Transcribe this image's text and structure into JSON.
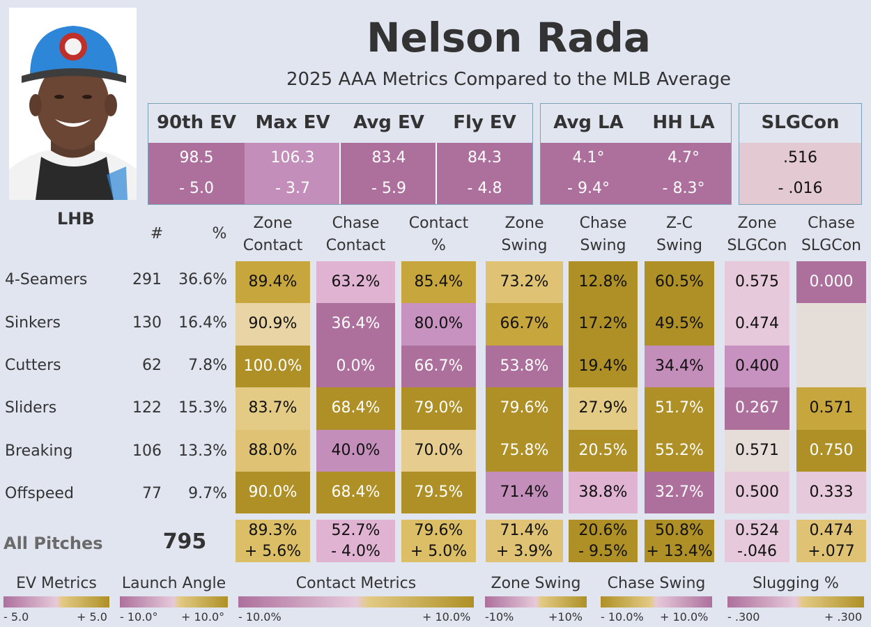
{
  "player": {
    "name": "Nelson Rada",
    "subtitle": "2025 AAA Metrics Compared to the MLB Average",
    "hand": "LHB"
  },
  "colors": {
    "background": "#e1e5f0",
    "dark_purple": "#ad709d",
    "mid_purple": "#c48ebb",
    "light_pink": "#e0b3d2",
    "neutral": "#e6ddd8",
    "light_gold": "#e3ca85",
    "mid_gold": "#c8a63e",
    "dark_gold": "#ae9026"
  },
  "ev_group": {
    "headers": [
      "90th EV",
      "Max EV",
      "Avg EV",
      "Fly EV"
    ],
    "values": [
      "98.5",
      "106.3",
      "83.4",
      "84.3"
    ],
    "diffs": [
      "- 5.0",
      "- 3.7",
      "- 5.9",
      "- 4.8"
    ]
  },
  "la_group": {
    "headers": [
      "Avg LA",
      "HH LA"
    ],
    "values": [
      "4.1°",
      "4.7°"
    ],
    "diffs": [
      "- 9.4°",
      "- 8.3°"
    ]
  },
  "slg_group": {
    "headers": [
      "SLGCon"
    ],
    "values": [
      ".516"
    ],
    "diffs": [
      "- .016"
    ]
  },
  "table": {
    "count_header": "#",
    "pct_header": "%",
    "columns": [
      [
        "Zone",
        "Contact"
      ],
      [
        "Chase",
        "Contact"
      ],
      [
        "Contact",
        "%"
      ],
      [
        "Zone",
        "Swing"
      ],
      [
        "Chase",
        "Swing"
      ],
      [
        "Z-C",
        "Swing"
      ],
      [
        "Zone",
        "SLGCon"
      ],
      [
        "Chase",
        "SLGCon"
      ]
    ],
    "rows": [
      {
        "pitch": "4-Seamers",
        "count": "291",
        "pct": "36.6%",
        "values": [
          "89.4%",
          "63.2%",
          "85.4%",
          "73.2%",
          "12.8%",
          "60.5%",
          "0.575",
          "0.000"
        ]
      },
      {
        "pitch": "Sinkers",
        "count": "130",
        "pct": "16.4%",
        "values": [
          "90.9%",
          "36.4%",
          "80.0%",
          "66.7%",
          "17.2%",
          "49.5%",
          "0.474",
          ""
        ]
      },
      {
        "pitch": "Cutters",
        "count": "62",
        "pct": "7.8%",
        "values": [
          "100.0%",
          "0.0%",
          "66.7%",
          "53.8%",
          "19.4%",
          "34.4%",
          "0.400",
          ""
        ]
      },
      {
        "pitch": "Sliders",
        "count": "122",
        "pct": "15.3%",
        "values": [
          "83.7%",
          "68.4%",
          "79.0%",
          "79.6%",
          "27.9%",
          "51.7%",
          "0.267",
          "0.571"
        ]
      },
      {
        "pitch": "Breaking",
        "count": "106",
        "pct": "13.3%",
        "values": [
          "88.0%",
          "40.0%",
          "70.0%",
          "75.8%",
          "20.5%",
          "55.2%",
          "0.571",
          "0.750"
        ]
      },
      {
        "pitch": "Offspeed",
        "count": "77",
        "pct": "9.7%",
        "values": [
          "90.0%",
          "68.4%",
          "79.5%",
          "71.4%",
          "38.8%",
          "32.7%",
          "0.500",
          "0.333"
        ]
      }
    ],
    "totals": {
      "label": "All Pitches",
      "count": "795",
      "values": [
        "89.3%",
        "52.7%",
        "79.6%",
        "71.4%",
        "20.6%",
        "50.8%",
        "0.524",
        "0.474"
      ],
      "diffs": [
        "+ 5.6%",
        "- 4.0%",
        "+ 5.0%",
        "+ 3.9%",
        "- 9.5%",
        "+ 13.4%",
        "-.046",
        "+.077"
      ]
    }
  },
  "legends": [
    {
      "title": "EV Metrics",
      "min": "- 5.0",
      "max": "+ 5.0",
      "reversed": false
    },
    {
      "title": "Launch Angle",
      "min": "- 10.0°",
      "max": "+ 10.0°",
      "reversed": false
    },
    {
      "title": "Contact Metrics",
      "min": "- 10.0%",
      "max": "+ 10.0%",
      "reversed": false
    },
    {
      "title": "Zone Swing",
      "min": "-10%",
      "max": "+10%",
      "reversed": false
    },
    {
      "title": "Chase Swing",
      "min": "- 10.0%",
      "max": "+ 10.0%",
      "reversed": true
    },
    {
      "title": "Slugging %",
      "min": "- .300",
      "max": "+ .300",
      "reversed": false
    }
  ],
  "chart_data": {
    "type": "table",
    "title": "Nelson Rada",
    "subtitle": "2025 AAA Metrics Compared to the MLB Average",
    "categories": [
      "4-Seamers",
      "Sinkers",
      "Cutters",
      "Sliders",
      "Breaking",
      "Offspeed"
    ],
    "counts": [
      291,
      130,
      62,
      122,
      106,
      77
    ],
    "usage_pct": [
      36.6,
      16.4,
      7.8,
      15.3,
      13.3,
      9.7
    ],
    "series": [
      {
        "name": "Zone Contact",
        "values": [
          89.4,
          90.9,
          100.0,
          83.7,
          88.0,
          90.0
        ],
        "all": 89.3,
        "vs_mlb": 5.6
      },
      {
        "name": "Chase Contact",
        "values": [
          63.2,
          36.4,
          0.0,
          68.4,
          40.0,
          68.4
        ],
        "all": 52.7,
        "vs_mlb": -4.0
      },
      {
        "name": "Contact %",
        "values": [
          85.4,
          80.0,
          66.7,
          79.0,
          70.0,
          79.5
        ],
        "all": 79.6,
        "vs_mlb": 5.0
      },
      {
        "name": "Zone Swing",
        "values": [
          73.2,
          66.7,
          53.8,
          79.6,
          75.8,
          71.4
        ],
        "all": 71.4,
        "vs_mlb": 3.9
      },
      {
        "name": "Chase Swing",
        "values": [
          12.8,
          17.2,
          19.4,
          27.9,
          20.5,
          38.8
        ],
        "all": 20.6,
        "vs_mlb": -9.5
      },
      {
        "name": "Z-C Swing",
        "values": [
          60.5,
          49.5,
          34.4,
          51.7,
          55.2,
          32.7
        ],
        "all": 50.8,
        "vs_mlb": 13.4
      },
      {
        "name": "Zone SLGCon",
        "values": [
          0.575,
          0.474,
          0.4,
          0.267,
          0.571,
          0.5
        ],
        "all": 0.524,
        "vs_mlb": -0.046
      },
      {
        "name": "Chase SLGCon",
        "values": [
          0.0,
          null,
          null,
          0.571,
          0.75,
          0.333
        ],
        "all": 0.474,
        "vs_mlb": 0.077
      }
    ],
    "summary_metrics": [
      {
        "name": "90th EV",
        "value": 98.5,
        "vs_mlb": -5.0
      },
      {
        "name": "Max EV",
        "value": 106.3,
        "vs_mlb": -3.7
      },
      {
        "name": "Avg EV",
        "value": 83.4,
        "vs_mlb": -5.9
      },
      {
        "name": "Fly EV",
        "value": 84.3,
        "vs_mlb": -4.8
      },
      {
        "name": "Avg LA",
        "value": 4.1,
        "vs_mlb": -9.4
      },
      {
        "name": "HH LA",
        "value": 4.7,
        "vs_mlb": -8.3
      },
      {
        "name": "SLGCon",
        "value": 0.516,
        "vs_mlb": -0.016
      }
    ]
  }
}
